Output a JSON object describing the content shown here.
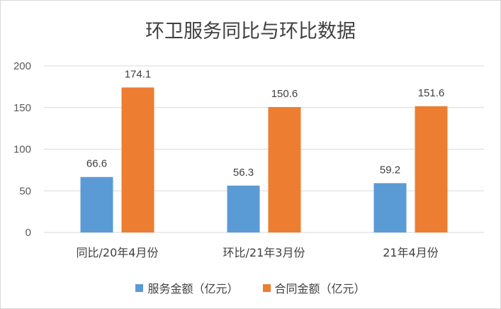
{
  "chart_data": {
    "type": "bar",
    "title": "环卫服务同比与环比数据",
    "categories": [
      "同比/20年4月份",
      "环比/21年3月份",
      "21年4月份"
    ],
    "series": [
      {
        "name": "服务金额（亿元）",
        "values": [
          66.6,
          56.3,
          59.2
        ],
        "color": "#5b9bd5"
      },
      {
        "name": "合同金额（亿元）",
        "values": [
          174.1,
          150.6,
          151.6
        ],
        "color": "#ed7d31"
      }
    ],
    "data_labels": [
      [
        "66.6",
        "56.3",
        "59.2"
      ],
      [
        "174.1",
        "150.6",
        "151.6"
      ]
    ],
    "yticks": [
      "0",
      "50",
      "100",
      "150",
      "200"
    ],
    "ylim": [
      0,
      200
    ],
    "grid": true,
    "legend": "bottom"
  }
}
